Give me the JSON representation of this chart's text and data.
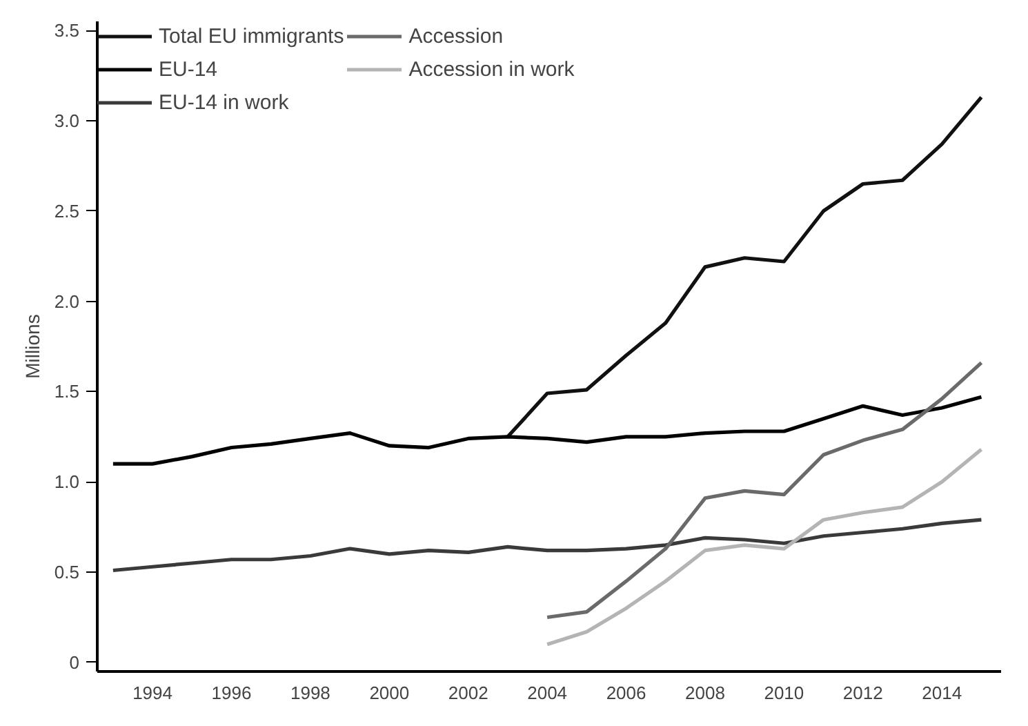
{
  "chart_data": {
    "type": "line",
    "ylabel": "Millions",
    "legend": "top left",
    "grid": false,
    "line_style": "solid",
    "x": [
      1993,
      1994,
      1995,
      1996,
      1997,
      1998,
      1999,
      2000,
      2001,
      2002,
      2003,
      2004,
      2005,
      2006,
      2007,
      2008,
      2009,
      2010,
      2011,
      2012,
      2013,
      2014,
      2015
    ],
    "xlim": [
      1992.6,
      2015.5
    ],
    "xticks": [
      1994,
      1996,
      1998,
      2000,
      2002,
      2004,
      2006,
      2008,
      2010,
      2012,
      2014
    ],
    "ylim": [
      -0.05,
      3.55
    ],
    "yticks": [
      0,
      {
        "value": 0.5,
        "label": "0.5"
      },
      {
        "value": 1,
        "label": "1.0"
      },
      {
        "value": 1.5,
        "label": "1.5"
      },
      {
        "value": 2,
        "label": "2.0"
      },
      {
        "value": 2.5,
        "label": "2.5"
      },
      {
        "value": 3,
        "label": "3.0"
      },
      {
        "value": 3.5,
        "label": "3.5"
      }
    ],
    "series": [
      {
        "name": "Total EU immigrants",
        "color": "#111111",
        "x": [
          2003,
          2004,
          2005,
          2006,
          2007,
          2008,
          2009,
          2010,
          2011,
          2012,
          2013,
          2014,
          2015
        ],
        "values": [
          1.25,
          1.49,
          1.51,
          1.7,
          1.88,
          2.19,
          2.24,
          2.22,
          2.5,
          2.65,
          2.67,
          2.87,
          3.13
        ]
      },
      {
        "name": "EU-14",
        "color": "#000000",
        "values": [
          1.1,
          1.1,
          1.14,
          1.19,
          1.21,
          1.24,
          1.27,
          1.2,
          1.19,
          1.24,
          1.25,
          1.24,
          1.22,
          1.25,
          1.25,
          1.27,
          1.28,
          1.28,
          1.35,
          1.42,
          1.37,
          1.41,
          1.47
        ]
      },
      {
        "name": "EU-14 in work",
        "color": "#3a3a3a",
        "values": [
          0.51,
          0.53,
          0.55,
          0.57,
          0.57,
          0.59,
          0.63,
          0.6,
          0.62,
          0.61,
          0.64,
          0.62,
          0.62,
          0.63,
          0.65,
          0.69,
          0.68,
          0.66,
          0.7,
          0.72,
          0.74,
          0.77,
          0.79
        ]
      },
      {
        "name": "Accession",
        "color": "#6a6a6a",
        "x": [
          2004,
          2005,
          2006,
          2007,
          2008,
          2009,
          2010,
          2011,
          2012,
          2013,
          2014,
          2015
        ],
        "values": [
          0.25,
          0.28,
          0.45,
          0.63,
          0.91,
          0.95,
          0.93,
          1.15,
          1.23,
          1.29,
          1.46,
          1.66
        ]
      },
      {
        "name": "Accession in work",
        "color": "#b4b4b4",
        "x": [
          2004,
          2005,
          2006,
          2007,
          2008,
          2009,
          2010,
          2011,
          2012,
          2013,
          2014,
          2015
        ],
        "values": [
          0.1,
          0.17,
          0.3,
          0.45,
          0.62,
          0.65,
          0.63,
          0.79,
          0.83,
          0.86,
          1.0,
          1.18
        ]
      }
    ]
  }
}
